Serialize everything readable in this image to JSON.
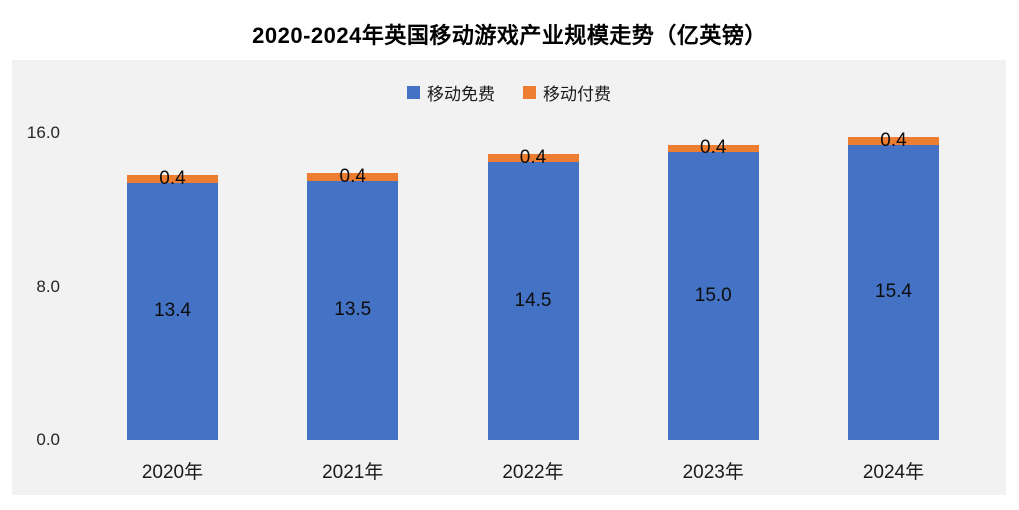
{
  "title": "2020-2024年英国移动游戏产业规模走势（亿英镑）",
  "colors": {
    "free_series": "#4472c4",
    "paid_series": "#ed7d31",
    "panel_background": "#f2f2f2",
    "page_background": "#ffffff",
    "text": "#1a1a1a"
  },
  "legend": {
    "items": [
      {
        "label": "移动免费",
        "color": "#4472c4"
      },
      {
        "label": "移动付费",
        "color": "#ed7d31"
      }
    ]
  },
  "chart_data": {
    "type": "bar",
    "stacked": true,
    "title": "2020-2024年英国移动游戏产业规模走势（亿英镑）",
    "categories": [
      "2020年",
      "2021年",
      "2022年",
      "2023年",
      "2024年"
    ],
    "series": [
      {
        "name": "移动免费",
        "color": "#4472c4",
        "values": [
          13.4,
          13.5,
          14.5,
          15.0,
          15.4
        ]
      },
      {
        "name": "移动付费",
        "color": "#ed7d31",
        "values": [
          0.4,
          0.4,
          0.4,
          0.4,
          0.4
        ]
      }
    ],
    "value_labels": {
      "free": [
        "13.4",
        "13.5",
        "14.5",
        "15.0",
        "15.4"
      ],
      "paid": [
        "0.4",
        "0.4",
        "0.4",
        "0.4",
        "0.4"
      ]
    },
    "xlabel": "",
    "ylabel": "",
    "yticks": [
      {
        "label": "0.0",
        "value": 0
      },
      {
        "label": "8.0",
        "value": 8
      },
      {
        "label": "16.0",
        "value": 16
      }
    ],
    "ylim": [
      0,
      16.8
    ],
    "grid": false,
    "legend_position": "top-center"
  }
}
